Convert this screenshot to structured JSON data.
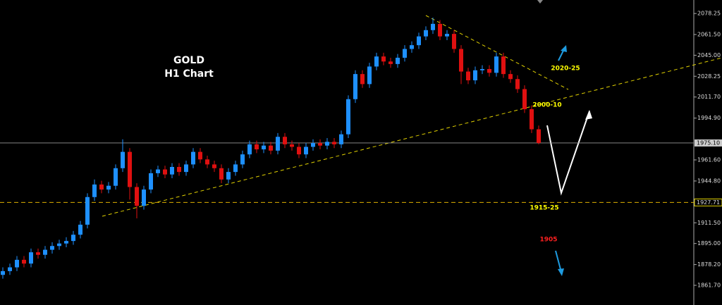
{
  "chart_data": {
    "type": "candlestick",
    "title": "GOLD",
    "subtitle": "H1 Chart",
    "open": [
      1870,
      1873,
      1876,
      1882,
      1879,
      1888,
      1886,
      1890,
      1893,
      1895,
      1897,
      1902,
      1910,
      1932,
      1942,
      1938,
      1941,
      1955,
      1968,
      1940,
      1925,
      1938,
      1951,
      1954,
      1950,
      1956,
      1952,
      1958,
      1968,
      1962,
      1958,
      1955,
      1946,
      1952,
      1958,
      1966,
      1974,
      1970,
      1973,
      1969,
      1980,
      1974,
      1972,
      1966,
      1972,
      1975,
      1973,
      1976,
      1974,
      1982,
      2010,
      2030,
      2022,
      2036,
      2044,
      2040,
      2038,
      2043,
      2050,
      2053,
      2060,
      2065,
      2070,
      2060,
      2062,
      2050,
      2032,
      2025,
      2033,
      2034,
      2031,
      2044,
      2030,
      2026,
      2018,
      2002,
      1986
    ],
    "high": [
      1876,
      1879,
      1885,
      1885,
      1891,
      1891,
      1893,
      1896,
      1898,
      1900,
      1905,
      1913,
      1935,
      1946,
      1945,
      1944,
      1958,
      1978,
      1971,
      1943,
      1941,
      1954,
      1957,
      1957,
      1959,
      1959,
      1961,
      1971,
      1971,
      1965,
      1961,
      1958,
      1955,
      1961,
      1969,
      1977,
      1977,
      1976,
      1976,
      1983,
      1983,
      1977,
      1975,
      1975,
      1978,
      1978,
      1979,
      1979,
      1985,
      2013,
      2033,
      2033,
      2039,
      2047,
      2047,
      2043,
      2046,
      2053,
      2056,
      2063,
      2068,
      2075,
      2073,
      2065,
      2065,
      2053,
      2035,
      2036,
      2037,
      2037,
      2047,
      2047,
      2033,
      2029,
      2021,
      2005,
      1989
    ],
    "low": [
      1867,
      1870,
      1873,
      1876,
      1876,
      1883,
      1883,
      1887,
      1890,
      1892,
      1894,
      1899,
      1907,
      1929,
      1935,
      1935,
      1938,
      1952,
      1930,
      1915,
      1922,
      1935,
      1948,
      1947,
      1947,
      1949,
      1949,
      1955,
      1959,
      1955,
      1952,
      1943,
      1943,
      1949,
      1955,
      1963,
      1967,
      1967,
      1966,
      1966,
      1971,
      1969,
      1963,
      1963,
      1969,
      1970,
      1970,
      1971,
      1971,
      1979,
      2007,
      2019,
      2019,
      2033,
      2037,
      2035,
      2035,
      2040,
      2047,
      2050,
      2057,
      2062,
      2057,
      2057,
      2047,
      2022,
      2022,
      2022,
      2030,
      2028,
      2028,
      2027,
      2023,
      2015,
      1999,
      1983,
      1974
    ],
    "close": [
      1873,
      1876,
      1882,
      1879,
      1888,
      1886,
      1890,
      1893,
      1895,
      1897,
      1902,
      1910,
      1932,
      1942,
      1938,
      1941,
      1955,
      1968,
      1940,
      1925,
      1938,
      1951,
      1954,
      1950,
      1956,
      1952,
      1958,
      1968,
      1962,
      1958,
      1955,
      1946,
      1952,
      1958,
      1966,
      1974,
      1970,
      1973,
      1969,
      1980,
      1974,
      1972,
      1966,
      1972,
      1975,
      1973,
      1976,
      1974,
      1982,
      2010,
      2030,
      2022,
      2036,
      2044,
      2040,
      2038,
      2043,
      2050,
      2053,
      2060,
      2065,
      2070,
      2060,
      2062,
      2050,
      2032,
      2025,
      2033,
      2034,
      2031,
      2044,
      2030,
      2026,
      2018,
      2002,
      1986,
      1975.1
    ],
    "up_color": "#1e90ff",
    "down_color": "#e01010",
    "ylim": [
      1846,
      2089
    ],
    "yticks": [
      {
        "value": 2078.25,
        "label": "2078.25"
      },
      {
        "value": 2061.5,
        "label": "2061.50"
      },
      {
        "value": 2045,
        "label": "2045.00"
      },
      {
        "value": 2028.25,
        "label": "2028.25"
      },
      {
        "value": 2011.7,
        "label": "2011.70"
      },
      {
        "value": 1994.9,
        "label": "1994.90"
      },
      {
        "value": 1961.6,
        "label": "1961.60"
      },
      {
        "value": 1944.8,
        "label": "1944.80"
      },
      {
        "value": 1911.5,
        "label": "1911.50"
      },
      {
        "value": 1895,
        "label": "1895.00"
      },
      {
        "value": 1878.2,
        "label": "1878.20"
      },
      {
        "value": 1861.7,
        "label": "1861.70"
      }
    ],
    "current_price": {
      "value": 1975.1,
      "label": "1975.10"
    },
    "level": 1927.71,
    "annotations": [
      {
        "text": "2020-25",
        "color": "#ffff00"
      },
      {
        "text": "2000-10",
        "color": "#ffff00"
      },
      {
        "text": "1915-25",
        "color": "#ffff00"
      },
      {
        "text": "1905",
        "color": "#ff2020"
      }
    ]
  }
}
